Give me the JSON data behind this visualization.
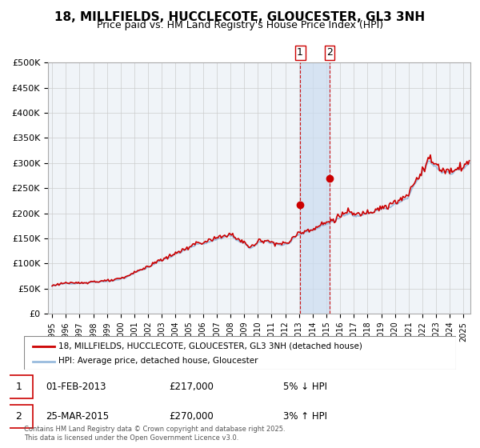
{
  "title": "18, MILLFIELDS, HUCCLECOTE, GLOUCESTER, GL3 3NH",
  "subtitle": "Price paid vs. HM Land Registry's House Price Index (HPI)",
  "ylabel_ticks": [
    "£0",
    "£50K",
    "£100K",
    "£150K",
    "£200K",
    "£250K",
    "£300K",
    "£350K",
    "£400K",
    "£450K",
    "£500K"
  ],
  "ytick_values": [
    0,
    50000,
    100000,
    150000,
    200000,
    250000,
    300000,
    350000,
    400000,
    450000,
    500000
  ],
  "ylim": [
    0,
    500000
  ],
  "xlim_start": 1995,
  "xlim_end": 2025.5,
  "hpi_color": "#99bbdd",
  "price_color": "#cc0000",
  "marker1_date": 2013.08,
  "marker1_value": 217000,
  "marker2_date": 2015.23,
  "marker2_value": 270000,
  "vline1_x": 2013.08,
  "vline2_x": 2015.23,
  "shade_x1": 2013.08,
  "shade_x2": 2015.23,
  "legend_entry1": "18, MILLFIELDS, HUCCLECOTE, GLOUCESTER, GL3 3NH (detached house)",
  "legend_entry2": "HPI: Average price, detached house, Gloucester",
  "transaction1_label": "1",
  "transaction1_date": "01-FEB-2013",
  "transaction1_price": "£217,000",
  "transaction1_hpi": "5% ↓ HPI",
  "transaction2_label": "2",
  "transaction2_date": "25-MAR-2015",
  "transaction2_price": "£270,000",
  "transaction2_hpi": "3% ↑ HPI",
  "footer": "Contains HM Land Registry data © Crown copyright and database right 2025.\nThis data is licensed under the Open Government Licence v3.0.",
  "background_color": "#ffffff",
  "grid_color": "#cccccc",
  "title_fontsize": 11,
  "subtitle_fontsize": 9
}
